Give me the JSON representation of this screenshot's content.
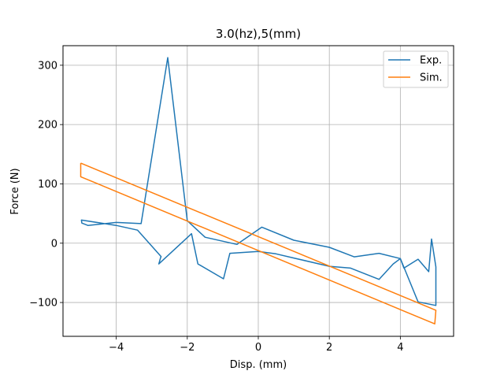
{
  "chart_data": {
    "type": "line",
    "title": "3.0(hz),5(mm)",
    "xlabel": "Disp. (mm)",
    "ylabel": "Force (N)",
    "xlim": [
      -5.5,
      5.5
    ],
    "ylim": [
      -157,
      333
    ],
    "xticks": [
      -4,
      -2,
      0,
      2,
      4
    ],
    "xtick_labels": [
      "−4",
      "−2",
      "0",
      "2",
      "4"
    ],
    "yticks": [
      -100,
      0,
      100,
      200,
      300
    ],
    "ytick_labels": [
      "−100",
      "0",
      "100",
      "200",
      "300"
    ],
    "grid": true,
    "legend_position": "top-right",
    "series": [
      {
        "name": "Exp.",
        "color": "#1f77b4",
        "points": [
          [
            -2.73,
            -23
          ],
          [
            -2.75,
            -24
          ],
          [
            -2.8,
            -35
          ],
          [
            -1.88,
            16
          ],
          [
            -1.7,
            -35
          ],
          [
            -0.98,
            -60
          ],
          [
            -0.8,
            -17
          ],
          [
            0.0,
            -14
          ],
          [
            0.5,
            -18
          ],
          [
            1.0,
            -25
          ],
          [
            2.0,
            -39
          ],
          [
            2.6,
            -42
          ],
          [
            3.4,
            -61
          ],
          [
            3.8,
            -35
          ],
          [
            4.0,
            -26
          ],
          [
            4.1,
            -42
          ],
          [
            4.5,
            -27
          ],
          [
            4.8,
            -48
          ],
          [
            4.88,
            7
          ],
          [
            5.0,
            -40
          ],
          [
            5.0,
            -105
          ],
          [
            4.5,
            -99
          ],
          [
            4.0,
            -26
          ],
          [
            3.4,
            -17
          ],
          [
            2.7,
            -23
          ],
          [
            2.0,
            -7
          ],
          [
            1.0,
            5
          ],
          [
            0.1,
            27
          ],
          [
            -0.6,
            -2
          ],
          [
            -1.5,
            10
          ],
          [
            -2.0,
            38
          ],
          [
            -2.55,
            313
          ],
          [
            -3.3,
            33
          ],
          [
            -4.0,
            35
          ],
          [
            -4.8,
            30
          ],
          [
            -4.97,
            34
          ],
          [
            -4.98,
            39
          ],
          [
            -4.0,
            30
          ],
          [
            -3.4,
            22
          ],
          [
            -2.73,
            -23
          ]
        ]
      },
      {
        "name": "Sim.",
        "color": "#ff7f0e",
        "points": [
          [
            -5.0,
            135
          ],
          [
            5.0,
            -113
          ],
          [
            4.97,
            -136
          ],
          [
            -5.0,
            112
          ],
          [
            -5.0,
            135
          ]
        ]
      }
    ]
  }
}
